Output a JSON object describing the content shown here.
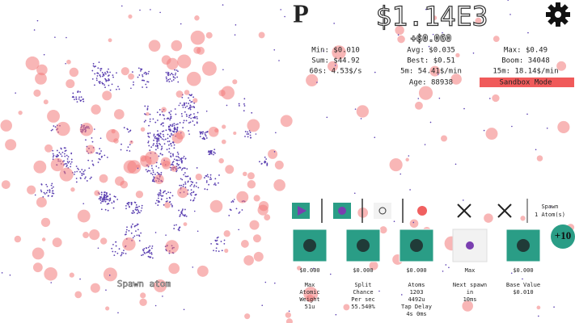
{
  "header": {
    "logo": "P",
    "money": "$1.14E3",
    "gain": "+$0.060"
  },
  "stats": [
    [
      "Min: $0.010",
      "Avg: $0.035",
      "Max: $0.49"
    ],
    [
      "Sum: $44.92",
      "Best: $0.51",
      "Boom: 34048"
    ],
    [
      "60s: 4.53$/s",
      "5m: 54.41$/min",
      "15m: 18.14$/min"
    ],
    [
      "",
      "Age: 88938",
      "Sandbox Mode"
    ]
  ],
  "toolbar": {
    "spawn_label": [
      "Spawn",
      "1 Atom(s)"
    ]
  },
  "plus_button": "+10",
  "upgrades": [
    {
      "price": "$0.000",
      "description": [
        "Max",
        "Atomic",
        "Weight",
        "51u"
      ]
    },
    {
      "price": "$0.000",
      "description": [
        "Split",
        "Chance",
        "Per sec",
        "55.540%"
      ]
    },
    {
      "price": "$0.000",
      "description": [
        "Atoms",
        "1203",
        "4492u",
        "Tap Delay",
        "4s   0ms"
      ]
    },
    {
      "price": "Max",
      "description": [
        "Next spawn",
        "in",
        "10ms"
      ]
    },
    {
      "price": "$0.000",
      "description": [
        "Base Value",
        "$0.010"
      ]
    }
  ],
  "field": {
    "spawn_label": "Spawn atom"
  }
}
